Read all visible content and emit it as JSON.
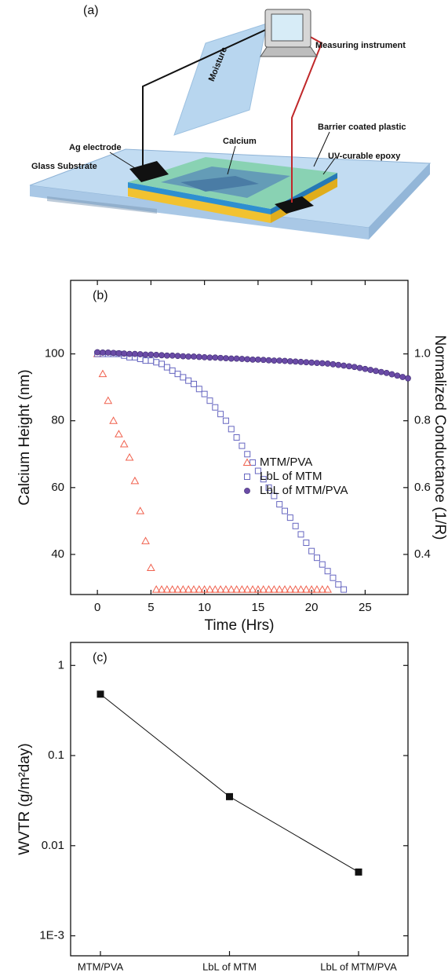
{
  "diagram": {
    "label": "(a)",
    "callouts": [
      "Moisture",
      "Measuring instrument",
      "Barrier coated plastic",
      "UV-curable epoxy",
      "Calcium",
      "Ag electrode",
      "Glass Substrate"
    ]
  },
  "chart_data": [
    {
      "type": "scatter",
      "annotation": "(b)",
      "xlabel": "Time (Hrs)",
      "ylabel": "Calcium Height (nm)",
      "y2label": "Normalized Conductance (1/R)",
      "xlim": [
        -2.5,
        29
      ],
      "xticks": [
        0,
        5,
        10,
        15,
        20,
        25
      ],
      "ylim": [
        28,
        122
      ],
      "yticks": [
        40,
        60,
        80,
        100
      ],
      "y2lim": [
        0.28,
        1.22
      ],
      "y2ticks": [
        0.4,
        0.6,
        0.8,
        {
          "value": 1,
          "label": "1.0"
        }
      ],
      "legend": "center right",
      "series": [
        {
          "name": "MTM/PVA",
          "color": "#f0604d",
          "marker": "triangle",
          "x": [
            0,
            0.5,
            1,
            1.5,
            2,
            2.5,
            3,
            3.5,
            4,
            4.5,
            5,
            5.5,
            6,
            6.5,
            7,
            7.5,
            8,
            8.5,
            9,
            9.5,
            10,
            10.5,
            11,
            11.5,
            12,
            12.5,
            13,
            13.5,
            14,
            14.5,
            15,
            15.5,
            16,
            16.5,
            17,
            17.5,
            18,
            18.5,
            19,
            19.5,
            20,
            20.5,
            21,
            21.5
          ],
          "values": [
            100,
            94,
            86,
            80,
            76,
            73,
            69,
            62,
            53,
            44,
            36,
            29.5,
            29.5,
            29.5,
            29.5,
            29.5,
            29.5,
            29.5,
            29.5,
            29.5,
            29.5,
            29.5,
            29.5,
            29.5,
            29.5,
            29.5,
            29.5,
            29.5,
            29.5,
            29.5,
            29.5,
            29.5,
            29.5,
            29.5,
            29.5,
            29.5,
            29.5,
            29.5,
            29.5,
            29.5,
            29.5,
            29.5,
            29.5,
            29.5
          ]
        },
        {
          "name": "LbL of MTM",
          "color": "#6666c0",
          "marker": "square",
          "x": [
            0,
            0.5,
            1,
            1.5,
            2,
            2.5,
            3,
            3.5,
            4,
            4.5,
            5,
            5.5,
            6,
            6.5,
            7,
            7.5,
            8,
            8.5,
            9,
            9.5,
            10,
            10.5,
            11,
            11.5,
            12,
            12.5,
            13,
            13.5,
            14,
            14.5,
            15,
            15.5,
            16,
            16.5,
            17,
            17.5,
            18,
            18.5,
            19,
            19.5,
            20,
            20.5,
            21,
            21.5,
            22,
            22.5,
            23
          ],
          "values": [
            100,
            100,
            100,
            100,
            100,
            99.5,
            99,
            99,
            98.5,
            98,
            98,
            97.5,
            97,
            96,
            95,
            94,
            93,
            92,
            91,
            89.5,
            88,
            86,
            84,
            82,
            80,
            77.5,
            75,
            72.5,
            70,
            67.5,
            65,
            62.5,
            60,
            57.5,
            55,
            53,
            51,
            48.5,
            46,
            43.5,
            41,
            39,
            37,
            35,
            33,
            31,
            29.5
          ]
        },
        {
          "name": "LbL of MTM/PVA",
          "color": "#6a4ba6",
          "marker": "circle",
          "x": [
            0,
            0.5,
            1,
            1.5,
            2,
            2.5,
            3,
            3.5,
            4,
            4.5,
            5,
            5.5,
            6,
            6.5,
            7,
            7.5,
            8,
            8.5,
            9,
            9.5,
            10,
            10.5,
            11,
            11.5,
            12,
            12.5,
            13,
            13.5,
            14,
            14.5,
            15,
            15.5,
            16,
            16.5,
            17,
            17.5,
            18,
            18.5,
            19,
            19.5,
            20,
            20.5,
            21,
            21.5,
            22,
            22.5,
            23,
            23.5,
            24,
            24.5,
            25,
            25.5,
            26,
            26.5,
            27,
            27.5,
            28,
            28.5,
            29
          ],
          "values": [
            100.5,
            100.4,
            100.4,
            100.3,
            100.2,
            100.1,
            100,
            100,
            99.9,
            99.8,
            99.8,
            99.7,
            99.6,
            99.5,
            99.5,
            99.4,
            99.3,
            99.2,
            99.2,
            99.1,
            99,
            98.9,
            98.9,
            98.8,
            98.7,
            98.6,
            98.6,
            98.5,
            98.4,
            98.3,
            98.3,
            98.2,
            98.1,
            98,
            98,
            97.9,
            97.8,
            97.7,
            97.6,
            97.5,
            97.4,
            97.3,
            97.2,
            97.1,
            96.9,
            96.7,
            96.5,
            96.3,
            96.1,
            95.8,
            95.5,
            95.2,
            94.9,
            94.6,
            94.3,
            93.9,
            93.5,
            93.1,
            92.7
          ]
        }
      ]
    },
    {
      "type": "line",
      "annotation": "(c)",
      "ylabel": "WVTR (g/m²day)",
      "log_y": true,
      "categories": [
        "MTM/PVA",
        "LbL of MTM",
        "LbL of MTM/PVA"
      ],
      "values": [
        0.48,
        0.035,
        0.0051
      ],
      "color": "#111111",
      "marker": "square",
      "ylim": [
        0.0006,
        1.8
      ],
      "yticks": [
        {
          "value": 0.001,
          "label": "1E-3"
        },
        0.01,
        0.1,
        1
      ]
    }
  ]
}
